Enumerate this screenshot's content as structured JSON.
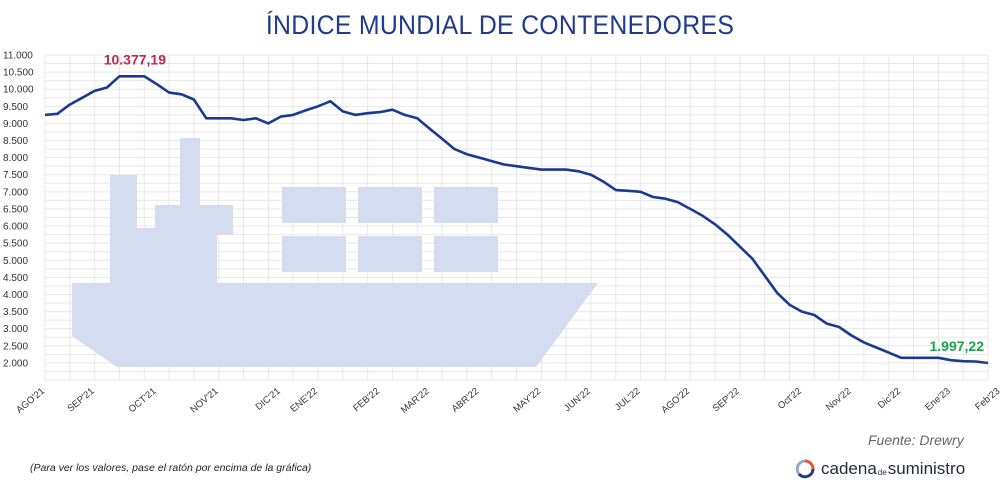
{
  "chart_data": {
    "type": "line",
    "title": "ÍNDICE MUNDIAL DE CONTENEDORES",
    "source": "Fuente: Drewry",
    "note": "(Para ver los valores, pase el ratón por encima de la gráfica)",
    "brand": {
      "part1": "cadena",
      "part2": "de",
      "part3": "suministro"
    },
    "ylim": [
      1500,
      11000
    ],
    "y_ticks": [
      2000,
      2500,
      3000,
      3500,
      4000,
      4500,
      5000,
      5500,
      6000,
      6500,
      7000,
      7500,
      8000,
      8500,
      9000,
      9500,
      10000,
      10500,
      11000
    ],
    "y_tick_labels": [
      "2.000",
      "2.500",
      "3.000",
      "3.500",
      "4.000",
      "4.500",
      "5.000",
      "5.500",
      "6.000",
      "6.500",
      "7.000",
      "7.500",
      "8.000",
      "8.500",
      "9.000",
      "9.500",
      "10.000",
      "10.500",
      "11.000"
    ],
    "x_tick_labels": [
      {
        "label": "AGO'21",
        "i": 0
      },
      {
        "label": "SEP'21",
        "i": 4
      },
      {
        "label": "OCT'21",
        "i": 9
      },
      {
        "label": "NOV'21",
        "i": 14
      },
      {
        "label": "DIC'21",
        "i": 19
      },
      {
        "label": "ENE'22",
        "i": 22
      },
      {
        "label": "FEB'22",
        "i": 27
      },
      {
        "label": "MAR'22",
        "i": 31
      },
      {
        "label": "ABR'22",
        "i": 35
      },
      {
        "label": "MAY'22",
        "i": 40
      },
      {
        "label": "JUN'22",
        "i": 44
      },
      {
        "label": "JUL'22",
        "i": 48
      },
      {
        "label": "AGO'22",
        "i": 52
      },
      {
        "label": "SEP'22",
        "i": 56
      },
      {
        "label": "Oct'22",
        "i": 61
      },
      {
        "label": "Nov'22",
        "i": 65
      },
      {
        "label": "Dic'22",
        "i": 69
      },
      {
        "label": "Ene'23",
        "i": 73
      },
      {
        "label": "Feb'23",
        "i": 77
      }
    ],
    "series": [
      {
        "color": "#1a3a8f",
        "values": [
          9250,
          9280,
          9550,
          9750,
          9950,
          10050,
          10377,
          10377,
          10377,
          10150,
          9900,
          9850,
          9700,
          9150,
          9150,
          9150,
          9100,
          9150,
          9000,
          9200,
          9250,
          9380,
          9500,
          9650,
          9350,
          9250,
          9300,
          9330,
          9400,
          9250,
          9150,
          8850,
          8550,
          8250,
          8100,
          8000,
          7900,
          7800,
          7750,
          7700,
          7650,
          7650,
          7650,
          7600,
          7500,
          7300,
          7050,
          7030,
          7000,
          6850,
          6800,
          6700,
          6500,
          6300,
          6050,
          5750,
          5400,
          5050,
          4550,
          4050,
          3700,
          3500,
          3400,
          3150,
          3050,
          2800,
          2600,
          2450,
          2300,
          2150,
          2150,
          2150,
          2150,
          2080,
          2050,
          2040,
          1997
        ]
      }
    ],
    "annotations": [
      {
        "text": "10.377,19",
        "i": 7,
        "value": 10377.19,
        "color": "#c0284e"
      },
      {
        "text": "1.997,22",
        "i": 76,
        "value": 1997.22,
        "color": "#1aa34a"
      }
    ],
    "grid": true,
    "background_icon": "cargo-ship-icon",
    "colors": {
      "line": "#1a3a8f",
      "ship": "#d5dcf0",
      "grid": "#e8e8e8",
      "title": "#1f3b8c"
    }
  }
}
